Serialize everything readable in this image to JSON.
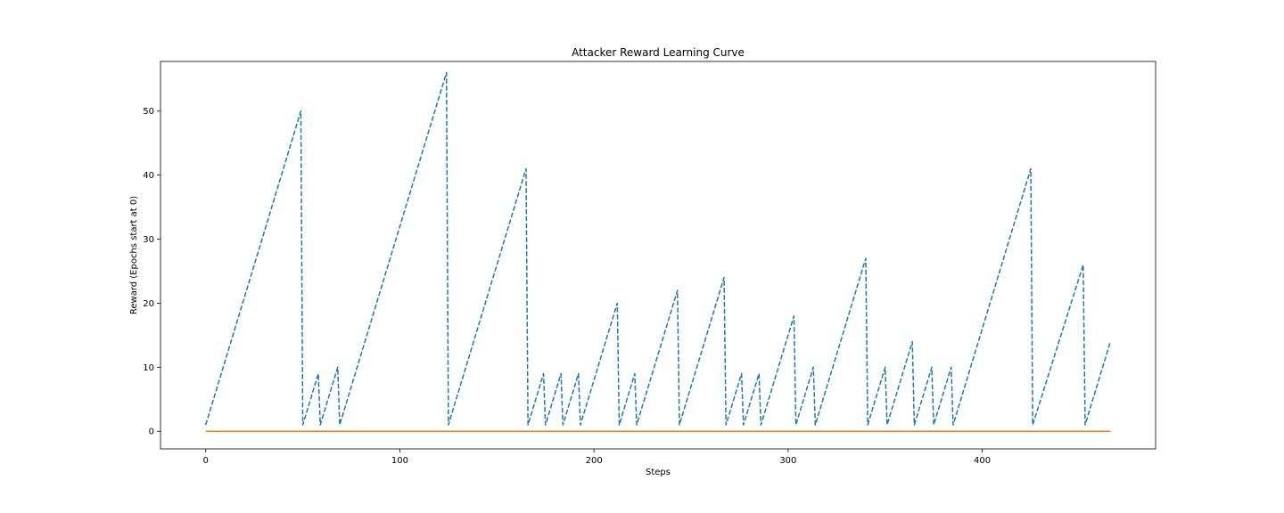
{
  "chart_data": {
    "type": "line",
    "title": "Attacker Reward Learning Curve",
    "xlabel": "Steps",
    "ylabel": "Reward (Epochs start at 0)",
    "xlim": [
      -23.3,
      489.3
    ],
    "ylim": [
      -2.75,
      57.75
    ],
    "xticks": [
      0,
      100,
      200,
      300,
      400
    ],
    "yticks": [
      0,
      10,
      20,
      30,
      40,
      50
    ],
    "grid": false,
    "legend": "none",
    "series": [
      {
        "style": "dashed",
        "color": "#1f77b4",
        "points": [
          [
            0,
            1
          ],
          [
            49,
            50
          ],
          [
            50,
            1
          ],
          [
            58,
            9
          ],
          [
            59,
            1
          ],
          [
            68,
            10
          ],
          [
            69,
            1
          ],
          [
            124,
            56
          ],
          [
            125,
            1
          ],
          [
            165,
            41
          ],
          [
            166,
            1
          ],
          [
            174,
            9
          ],
          [
            175,
            1
          ],
          [
            183,
            9
          ],
          [
            184,
            1
          ],
          [
            192,
            9
          ],
          [
            193,
            1
          ],
          [
            212,
            20
          ],
          [
            213,
            1
          ],
          [
            221,
            9
          ],
          [
            222,
            1
          ],
          [
            243,
            22
          ],
          [
            244,
            1
          ],
          [
            267,
            24
          ],
          [
            268,
            1
          ],
          [
            276,
            9
          ],
          [
            277,
            1
          ],
          [
            285,
            9
          ],
          [
            286,
            1
          ],
          [
            303,
            18
          ],
          [
            304,
            1
          ],
          [
            313,
            10
          ],
          [
            314,
            1
          ],
          [
            340,
            27
          ],
          [
            341,
            1
          ],
          [
            350,
            10
          ],
          [
            351,
            1
          ],
          [
            364,
            14
          ],
          [
            365,
            1
          ],
          [
            374,
            10
          ],
          [
            375,
            1
          ],
          [
            384,
            10
          ],
          [
            385,
            1
          ],
          [
            425,
            41
          ],
          [
            426,
            1
          ],
          [
            452,
            26
          ],
          [
            453,
            1
          ],
          [
            466,
            14
          ]
        ]
      },
      {
        "style": "solid",
        "color": "#ff7f0e",
        "points": [
          [
            0,
            0
          ],
          [
            466,
            0
          ]
        ]
      }
    ]
  }
}
